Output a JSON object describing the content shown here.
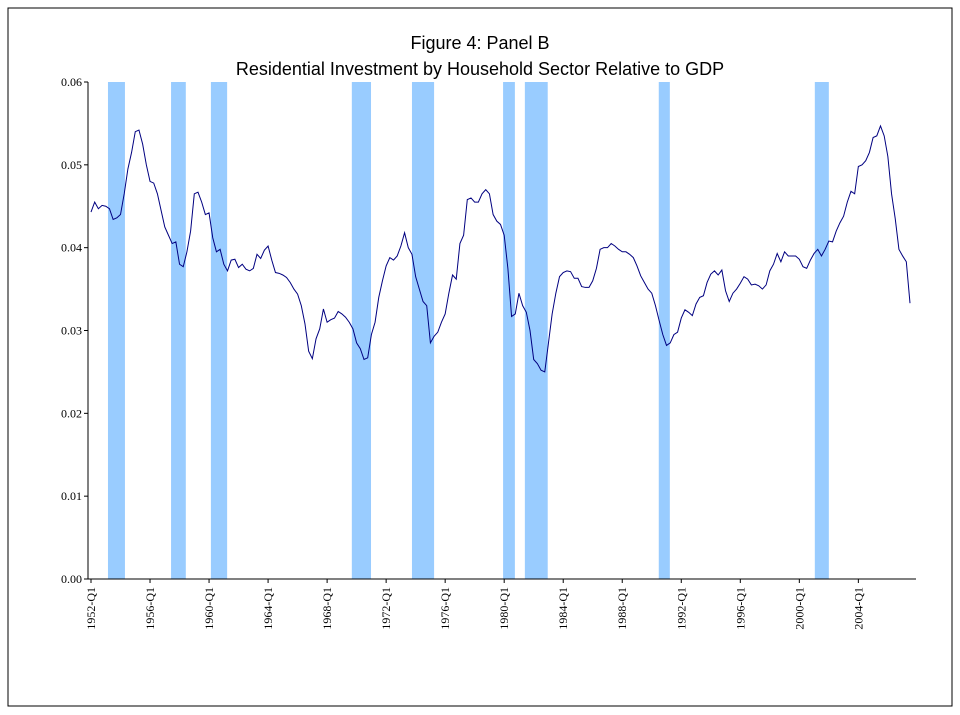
{
  "chart_data": {
    "type": "line",
    "title": [
      "Figure 4: Panel B",
      "Residential Investment by Household Sector Relative to GDP"
    ],
    "categories": [
      "1952-Q1",
      null,
      null,
      null,
      null,
      null,
      null,
      null,
      null,
      null,
      null,
      null,
      null,
      null,
      null,
      null,
      "1956-Q1",
      null,
      null,
      null,
      null,
      null,
      null,
      null,
      null,
      null,
      null,
      null,
      null,
      null,
      null,
      null,
      "1960-Q1",
      null,
      null,
      null,
      null,
      null,
      null,
      null,
      null,
      null,
      null,
      null,
      null,
      null,
      null,
      null,
      "1964-Q1",
      null,
      null,
      null,
      null,
      null,
      null,
      null,
      null,
      null,
      null,
      null,
      null,
      null,
      null,
      null,
      "1968-Q1",
      null,
      null,
      null,
      null,
      null,
      null,
      null,
      null,
      null,
      null,
      null,
      null,
      null,
      null,
      null,
      "1972-Q1",
      null,
      null,
      null,
      null,
      null,
      null,
      null,
      null,
      null,
      null,
      null,
      null,
      null,
      null,
      null,
      "1976-Q1",
      null,
      null,
      null,
      null,
      null,
      null,
      null,
      null,
      null,
      null,
      null,
      null,
      null,
      null,
      null,
      "1980-Q1",
      null,
      null,
      null,
      null,
      null,
      null,
      null,
      null,
      null,
      null,
      null,
      null,
      null,
      null,
      null,
      "1984-Q1",
      null,
      null,
      null,
      null,
      null,
      null,
      null,
      null,
      null,
      null,
      null,
      null,
      null,
      null,
      null,
      "1988-Q1",
      null,
      null,
      null,
      null,
      null,
      null,
      null,
      null,
      null,
      null,
      null,
      null,
      null,
      null,
      null,
      "1992-Q1",
      null,
      null,
      null,
      null,
      null,
      null,
      null,
      null,
      null,
      null,
      null,
      null,
      null,
      null,
      null,
      "1996-Q1",
      null,
      null,
      null,
      null,
      null,
      null,
      null,
      null,
      null,
      null,
      null,
      null,
      null,
      null,
      null,
      "2000-Q1",
      null,
      null,
      null,
      null,
      null,
      null,
      null,
      null,
      null,
      null,
      null,
      null,
      null,
      null,
      null,
      "2004-Q1",
      null,
      null,
      null,
      null,
      null,
      null,
      null,
      null,
      null,
      null,
      null,
      null,
      null,
      null
    ],
    "values": [
      0.0443,
      0.0455,
      0.0447,
      0.0451,
      0.045,
      0.0447,
      0.0434,
      0.0436,
      0.044,
      0.0465,
      0.0495,
      0.0515,
      0.054,
      0.0542,
      0.0525,
      0.05,
      0.048,
      0.0478,
      0.0465,
      0.0445,
      0.0425,
      0.0415,
      0.0405,
      0.0407,
      0.038,
      0.0377,
      0.0395,
      0.042,
      0.0465,
      0.0467,
      0.0455,
      0.044,
      0.0442,
      0.0412,
      0.0395,
      0.0398,
      0.038,
      0.0372,
      0.0385,
      0.0386,
      0.0376,
      0.038,
      0.0374,
      0.0372,
      0.0375,
      0.0392,
      0.0387,
      0.0397,
      0.0402,
      0.0385,
      0.037,
      0.0369,
      0.0367,
      0.0364,
      0.0358,
      0.035,
      0.0344,
      0.033,
      0.0308,
      0.0275,
      0.0266,
      0.029,
      0.0302,
      0.0326,
      0.031,
      0.0313,
      0.0315,
      0.0323,
      0.032,
      0.0316,
      0.031,
      0.0302,
      0.0285,
      0.0278,
      0.0265,
      0.0267,
      0.0295,
      0.031,
      0.034,
      0.036,
      0.0378,
      0.0388,
      0.0385,
      0.039,
      0.0402,
      0.0418,
      0.04,
      0.0392,
      0.0365,
      0.035,
      0.0335,
      0.033,
      0.0285,
      0.0293,
      0.0298,
      0.031,
      0.032,
      0.0345,
      0.0367,
      0.0362,
      0.0405,
      0.0415,
      0.0458,
      0.046,
      0.0455,
      0.0455,
      0.0465,
      0.047,
      0.0465,
      0.044,
      0.0432,
      0.0428,
      0.0415,
      0.0375,
      0.0317,
      0.032,
      0.0345,
      0.033,
      0.0322,
      0.03,
      0.0265,
      0.026,
      0.0252,
      0.025,
      0.0285,
      0.032,
      0.0345,
      0.0365,
      0.037,
      0.0372,
      0.0371,
      0.0363,
      0.0363,
      0.0353,
      0.0352,
      0.0352,
      0.036,
      0.0375,
      0.0398,
      0.04,
      0.04,
      0.0405,
      0.0402,
      0.0398,
      0.0395,
      0.0395,
      0.0392,
      0.0388,
      0.0378,
      0.0366,
      0.0358,
      0.035,
      0.0345,
      0.033,
      0.0312,
      0.0295,
      0.0282,
      0.0285,
      0.0295,
      0.0298,
      0.0315,
      0.0325,
      0.0322,
      0.0318,
      0.0332,
      0.034,
      0.0342,
      0.0358,
      0.0368,
      0.0372,
      0.0367,
      0.0373,
      0.0348,
      0.0335,
      0.0345,
      0.035,
      0.0357,
      0.0365,
      0.0362,
      0.0355,
      0.0356,
      0.0354,
      0.035,
      0.0355,
      0.0372,
      0.038,
      0.0393,
      0.0383,
      0.0395,
      0.039,
      0.039,
      0.039,
      0.0386,
      0.0377,
      0.0375,
      0.0385,
      0.0393,
      0.0398,
      0.039,
      0.0398,
      0.0408,
      0.0407,
      0.042,
      0.043,
      0.0438,
      0.0455,
      0.0468,
      0.0465,
      0.0498,
      0.05,
      0.0505,
      0.0515,
      0.0533,
      0.0535,
      0.0547,
      0.0535,
      0.051,
      0.0465,
      0.0435,
      0.0398,
      0.039,
      0.0383,
      0.0333
    ],
    "color": "#000080",
    "recessions": [
      [
        4.6,
        9.2
      ],
      [
        21.7,
        25.7
      ],
      [
        32.5,
        36.9
      ],
      [
        70.7,
        75.9
      ],
      [
        87.0,
        93.0
      ],
      [
        111.7,
        114.9
      ],
      [
        117.6,
        123.8
      ],
      [
        153.9,
        156.9
      ],
      [
        196.2,
        200.0
      ]
    ],
    "recession_color": "#99ccff",
    "ylim": [
      0,
      0.06
    ],
    "yticks": [
      {
        "value": 0,
        "label": "0.00"
      },
      0.01,
      0.02,
      0.03,
      0.04,
      0.05,
      0.06
    ],
    "grid": false
  }
}
